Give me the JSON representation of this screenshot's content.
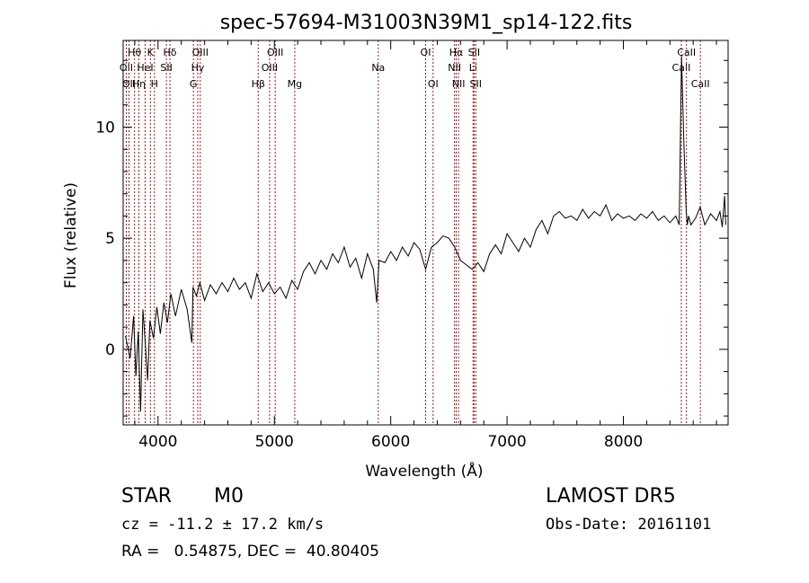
{
  "chart_data": {
    "type": "line",
    "title": "spec-57694-M31003N39M1_sp14-122.fits",
    "xlabel": "Wavelength (Å)",
    "ylabel": "Flux (relative)",
    "xlim": [
      3700,
      8900
    ],
    "ylim": [
      -3.4,
      13.9
    ],
    "xticks": [
      4000,
      5000,
      6000,
      7000,
      8000
    ],
    "yticks": [
      0,
      5,
      10
    ],
    "grid": false,
    "line_color": "#000000",
    "marker_color": "#9b1c1c",
    "series": [
      {
        "x": [
          3720,
          3760,
          3790,
          3810,
          3830,
          3850,
          3870,
          3890,
          3910,
          3930,
          3960,
          3990,
          4020,
          4050,
          4080,
          4110,
          4150,
          4200,
          4250,
          4290,
          4300,
          4330,
          4360,
          4400,
          4450,
          4500,
          4550,
          4600,
          4650,
          4700,
          4750,
          4800,
          4850,
          4900,
          4950,
          5000,
          5050,
          5100,
          5150,
          5200,
          5250,
          5300,
          5350,
          5400,
          5450,
          5500,
          5550,
          5600,
          5650,
          5700,
          5750,
          5800,
          5850,
          5880,
          5900,
          5950,
          6000,
          6050,
          6100,
          6150,
          6200,
          6250,
          6300,
          6350,
          6400,
          6450,
          6500,
          6550,
          6600,
          6650,
          6700,
          6750,
          6800,
          6850,
          6900,
          6950,
          7000,
          7050,
          7100,
          7150,
          7200,
          7250,
          7300,
          7350,
          7400,
          7450,
          7500,
          7550,
          7600,
          7650,
          7700,
          7750,
          7800,
          7850,
          7900,
          7950,
          8000,
          8050,
          8100,
          8150,
          8200,
          8250,
          8300,
          8350,
          8400,
          8450,
          8480,
          8500,
          8520,
          8540,
          8550,
          8560,
          8580,
          8620,
          8660,
          8700,
          8750,
          8800,
          8830,
          8850,
          8870,
          8880
        ],
        "y": [
          0.6,
          -0.4,
          1.5,
          -1.2,
          0.8,
          -2.8,
          1.8,
          0.3,
          -1.4,
          1.3,
          0.5,
          1.9,
          0.7,
          2.1,
          1.2,
          2.5,
          1.5,
          2.7,
          1.8,
          0.3,
          2.8,
          2.4,
          3.0,
          2.2,
          2.9,
          2.5,
          3.0,
          2.6,
          3.2,
          2.7,
          3.0,
          2.3,
          3.4,
          2.6,
          3.0,
          2.5,
          2.8,
          2.3,
          3.1,
          2.7,
          3.5,
          3.9,
          3.4,
          4.0,
          3.6,
          4.3,
          3.9,
          4.6,
          3.7,
          4.1,
          3.2,
          4.3,
          3.6,
          2.1,
          4.0,
          3.9,
          4.4,
          4.0,
          4.6,
          4.2,
          4.8,
          4.5,
          3.6,
          4.6,
          4.8,
          5.1,
          5.0,
          4.6,
          4.0,
          3.8,
          3.6,
          3.9,
          3.5,
          4.3,
          4.7,
          4.3,
          5.2,
          4.8,
          4.4,
          5.0,
          4.6,
          5.4,
          5.8,
          5.2,
          6.0,
          6.2,
          5.9,
          6.0,
          5.8,
          6.3,
          5.9,
          6.2,
          6.0,
          6.5,
          5.8,
          6.1,
          5.9,
          6.0,
          5.8,
          6.1,
          5.9,
          6.2,
          5.8,
          6.0,
          5.7,
          6.0,
          5.6,
          13.2,
          9.3,
          6.2,
          5.6,
          6.0,
          5.6,
          5.9,
          6.4,
          5.6,
          6.1,
          5.8,
          6.2,
          5.5,
          6.9,
          5.6
        ]
      }
    ],
    "line_markers": [
      {
        "wavelength": 3727,
        "label": "OII",
        "row": 1
      },
      {
        "wavelength": 3750,
        "label": "OII",
        "row": 2
      },
      {
        "wavelength": 3798,
        "label": "Hθ",
        "row": 0
      },
      {
        "wavelength": 3835,
        "label": "Hη",
        "row": 2
      },
      {
        "wavelength": 3889,
        "label": "HeI",
        "row": 1
      },
      {
        "wavelength": 3934,
        "label": "K",
        "row": 0
      },
      {
        "wavelength": 3969,
        "label": "H",
        "row": 2
      },
      {
        "wavelength": 4072,
        "label": "SII",
        "row": 1
      },
      {
        "wavelength": 4102,
        "label": "Hδ",
        "row": 0
      },
      {
        "wavelength": 4304,
        "label": "G",
        "row": 2
      },
      {
        "wavelength": 4341,
        "label": "Hγ",
        "row": 1
      },
      {
        "wavelength": 4363,
        "label": "OIII",
        "row": 0
      },
      {
        "wavelength": 4861,
        "label": "Hβ",
        "row": 2
      },
      {
        "wavelength": 4959,
        "label": "OIII",
        "row": 1
      },
      {
        "wavelength": 5007,
        "label": "OIII",
        "row": 0
      },
      {
        "wavelength": 5175,
        "label": "Mg",
        "row": 2
      },
      {
        "wavelength": 5893,
        "label": "Na",
        "row": 1
      },
      {
        "wavelength": 6300,
        "label": "OI",
        "row": 0
      },
      {
        "wavelength": 6364,
        "label": "OI",
        "row": 2
      },
      {
        "wavelength": 6548,
        "label": "NII",
        "row": 1
      },
      {
        "wavelength": 6563,
        "label": "Hα",
        "row": 0
      },
      {
        "wavelength": 6583,
        "label": "NII",
        "row": 2
      },
      {
        "wavelength": 6708,
        "label": "Li",
        "row": 1
      },
      {
        "wavelength": 6716,
        "label": "SII",
        "row": 0
      },
      {
        "wavelength": 6731,
        "label": "SII",
        "row": 2
      },
      {
        "wavelength": 8498,
        "label": "CaII",
        "row": 1
      },
      {
        "wavelength": 8542,
        "label": "CaII",
        "row": 0
      },
      {
        "wavelength": 8662,
        "label": "CaII",
        "row": 2
      }
    ]
  },
  "info": {
    "obj_class": "STAR",
    "subclass": "M0",
    "survey": "LAMOST DR5",
    "cz_line": "cz = -11.2 ± 17.2 km/s",
    "obs_date": "Obs-Date: 20161101",
    "radec": "RA =   0.54875, DEC =  40.80405"
  }
}
